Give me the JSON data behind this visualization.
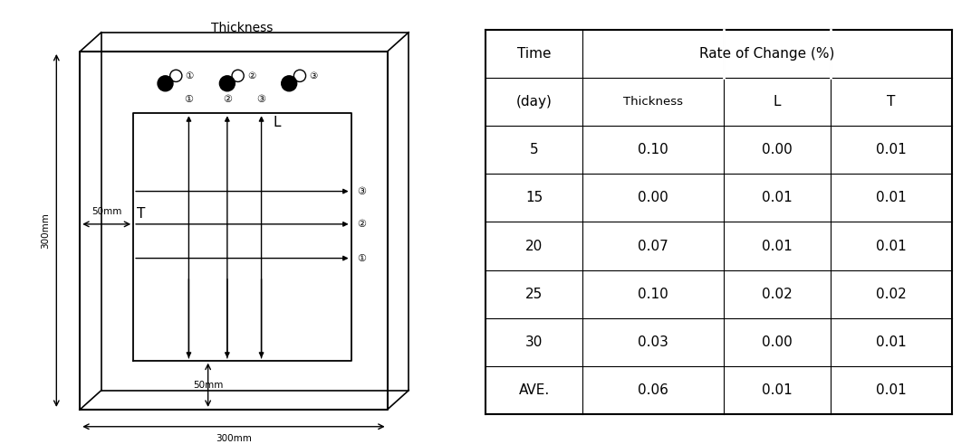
{
  "table_headers_row1": [
    "Time",
    "Rate of Change (%)"
  ],
  "table_headers_row2": [
    "(day)",
    "Thickness",
    "L",
    "T"
  ],
  "table_data": [
    [
      "5",
      "0.10",
      "0.00",
      "0.01"
    ],
    [
      "15",
      "0.00",
      "0.01",
      "0.01"
    ],
    [
      "20",
      "0.07",
      "0.01",
      "0.01"
    ],
    [
      "25",
      "0.10",
      "0.02",
      "0.02"
    ],
    [
      "30",
      "0.03",
      "0.00",
      "0.01"
    ],
    [
      "AVE.",
      "0.06",
      "0.01",
      "0.01"
    ]
  ],
  "diagram_label_thickness": "Thickness",
  "diagram_label_L": "L",
  "diagram_label_T": "T",
  "diagram_label_300mm_h": "300mm",
  "diagram_label_300mm_w": "300mm",
  "diagram_label_50mm_h": "50mm",
  "diagram_label_50mm_v": "50mm",
  "bg_color": "#ffffff",
  "line_color": "#000000",
  "gray_color": "#888888"
}
